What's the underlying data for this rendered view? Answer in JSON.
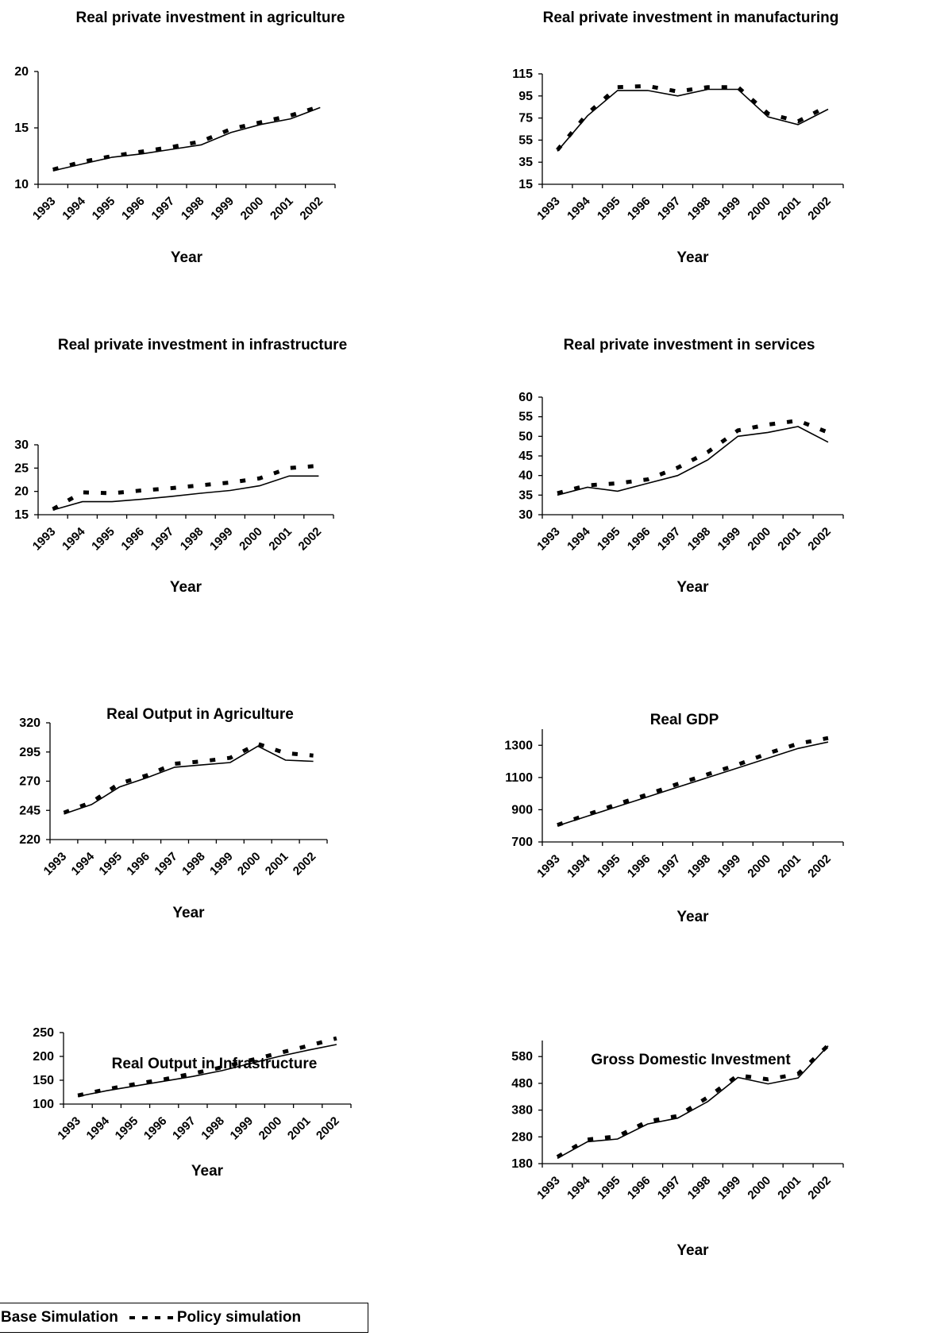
{
  "years": [
    "1993",
    "1994",
    "1995",
    "1996",
    "1997",
    "1998",
    "1999",
    "2000",
    "2001",
    "2002"
  ],
  "xlabel": "Year",
  "legend": {
    "base_label": "Base Simulation",
    "policy_label": "Policy simulation"
  },
  "chart_data": [
    {
      "id": "agr-inv",
      "type": "line",
      "title": "Real private investment in agriculture",
      "xlabel": "Year",
      "yticks": [
        10,
        15,
        20
      ],
      "ylim": [
        10,
        20
      ],
      "x": [
        "1993",
        "1994",
        "1995",
        "1996",
        "1997",
        "1998",
        "1999",
        "2000",
        "2001",
        "2002"
      ],
      "series": [
        {
          "name": "Base Simulation",
          "values": [
            11.2,
            11.8,
            12.4,
            12.7,
            13.1,
            13.5,
            14.6,
            15.3,
            15.8,
            16.8
          ]
        },
        {
          "name": "Policy simulation",
          "values": [
            11.3,
            12.0,
            12.5,
            12.9,
            13.3,
            13.8,
            14.9,
            15.5,
            16.1,
            16.9
          ]
        }
      ]
    },
    {
      "id": "man-inv",
      "type": "line",
      "title": "Real private investment in manufacturing",
      "xlabel": "Year",
      "yticks": [
        15,
        35,
        55,
        75,
        95,
        115
      ],
      "ylim": [
        15,
        115
      ],
      "x": [
        "1993",
        "1994",
        "1995",
        "1996",
        "1997",
        "1998",
        "1999",
        "2000",
        "2001",
        "2002"
      ],
      "series": [
        {
          "name": "Base Simulation",
          "values": [
            45,
            77,
            100,
            100,
            95,
            101,
            101,
            76,
            69,
            83
          ]
        },
        {
          "name": "Policy simulation",
          "values": [
            46,
            79,
            103,
            104,
            99,
            103,
            103,
            79,
            72,
            86
          ]
        }
      ]
    },
    {
      "id": "inf-inv",
      "type": "line",
      "title": "Real private investment in infrastructure",
      "xlabel": "Year",
      "yticks": [
        15,
        20,
        25,
        30
      ],
      "ylim": [
        15,
        30
      ],
      "x": [
        "1993",
        "1994",
        "1995",
        "1996",
        "1997",
        "1998",
        "1999",
        "2000",
        "2001",
        "2002"
      ],
      "series": [
        {
          "name": "Base Simulation",
          "values": [
            16.0,
            17.8,
            17.8,
            18.3,
            18.9,
            19.6,
            20.2,
            21.2,
            23.3,
            23.3
          ]
        },
        {
          "name": "Policy simulation",
          "values": [
            16.2,
            19.8,
            19.6,
            20.2,
            20.7,
            21.3,
            21.9,
            22.8,
            25.0,
            25.5
          ]
        }
      ]
    },
    {
      "id": "svc-inv",
      "type": "line",
      "title": "Real private investment in services",
      "xlabel": "Year",
      "yticks": [
        30,
        35,
        40,
        45,
        50,
        55,
        60
      ],
      "ylim": [
        30,
        60
      ],
      "x": [
        "1993",
        "1994",
        "1995",
        "1996",
        "1997",
        "1998",
        "1999",
        "2000",
        "2001",
        "2002"
      ],
      "series": [
        {
          "name": "Base Simulation",
          "values": [
            35.0,
            37.0,
            36.0,
            38.0,
            40.0,
            44.0,
            50.0,
            51.0,
            52.5,
            48.5
          ]
        },
        {
          "name": "Policy simulation",
          "values": [
            35.5,
            37.5,
            38.0,
            39.0,
            42.0,
            46.0,
            51.5,
            53.0,
            54.0,
            51.0
          ]
        }
      ]
    },
    {
      "id": "agr-out",
      "type": "line",
      "title": "Real Output in Agriculture",
      "xlabel": "Year",
      "yticks": [
        220,
        245,
        270,
        295,
        320
      ],
      "ylim": [
        220,
        320
      ],
      "x": [
        "1993",
        "1994",
        "1995",
        "1996",
        "1997",
        "1998",
        "1999",
        "2000",
        "2001",
        "2002"
      ],
      "series": [
        {
          "name": "Base Simulation",
          "values": [
            242,
            250,
            265,
            273,
            282,
            284,
            286,
            300,
            288,
            287
          ]
        },
        {
          "name": "Policy simulation",
          "values": [
            243,
            252,
            268,
            275,
            285,
            287,
            290,
            302,
            294,
            292
          ]
        }
      ]
    },
    {
      "id": "gdp",
      "type": "line",
      "title": "Real GDP",
      "xlabel": "Year",
      "yticks": [
        700,
        900,
        1100,
        1300
      ],
      "ylim": [
        700,
        1400
      ],
      "x": [
        "1993",
        "1994",
        "1995",
        "1996",
        "1997",
        "1998",
        "1999",
        "2000",
        "2001",
        "2002"
      ],
      "series": [
        {
          "name": "Base Simulation",
          "values": [
            800,
            860,
            920,
            980,
            1040,
            1100,
            1160,
            1220,
            1280,
            1320
          ]
        },
        {
          "name": "Policy simulation",
          "values": [
            805,
            870,
            935,
            995,
            1060,
            1120,
            1180,
            1250,
            1310,
            1345
          ]
        }
      ]
    },
    {
      "id": "inf-out",
      "type": "line",
      "title": "Real Output in Infrastructure",
      "xlabel": "Year",
      "yticks": [
        100,
        150,
        200,
        250
      ],
      "ylim": [
        100,
        250
      ],
      "x": [
        "1993",
        "1994",
        "1995",
        "1996",
        "1997",
        "1998",
        "1999",
        "2000",
        "2001",
        "2002"
      ],
      "series": [
        {
          "name": "Base Simulation",
          "values": [
            116,
            128,
            138,
            148,
            158,
            170,
            185,
            200,
            213,
            225
          ]
        },
        {
          "name": "Policy simulation",
          "values": [
            118,
            131,
            142,
            152,
            164,
            177,
            192,
            207,
            222,
            238
          ]
        }
      ]
    },
    {
      "id": "gdi",
      "type": "line",
      "title": "Gross Domestic Investment",
      "xlabel": "Year",
      "yticks": [
        180,
        280,
        380,
        480,
        580
      ],
      "ylim": [
        180,
        640
      ],
      "x": [
        "1993",
        "1994",
        "1995",
        "1996",
        "1997",
        "1998",
        "1999",
        "2000",
        "2001",
        "2002"
      ],
      "series": [
        {
          "name": "Base Simulation",
          "values": [
            200,
            262,
            272,
            328,
            350,
            412,
            502,
            478,
            500,
            620
          ]
        },
        {
          "name": "Policy simulation",
          "values": [
            205,
            270,
            282,
            338,
            358,
            428,
            510,
            495,
            515,
            622
          ]
        }
      ]
    }
  ]
}
